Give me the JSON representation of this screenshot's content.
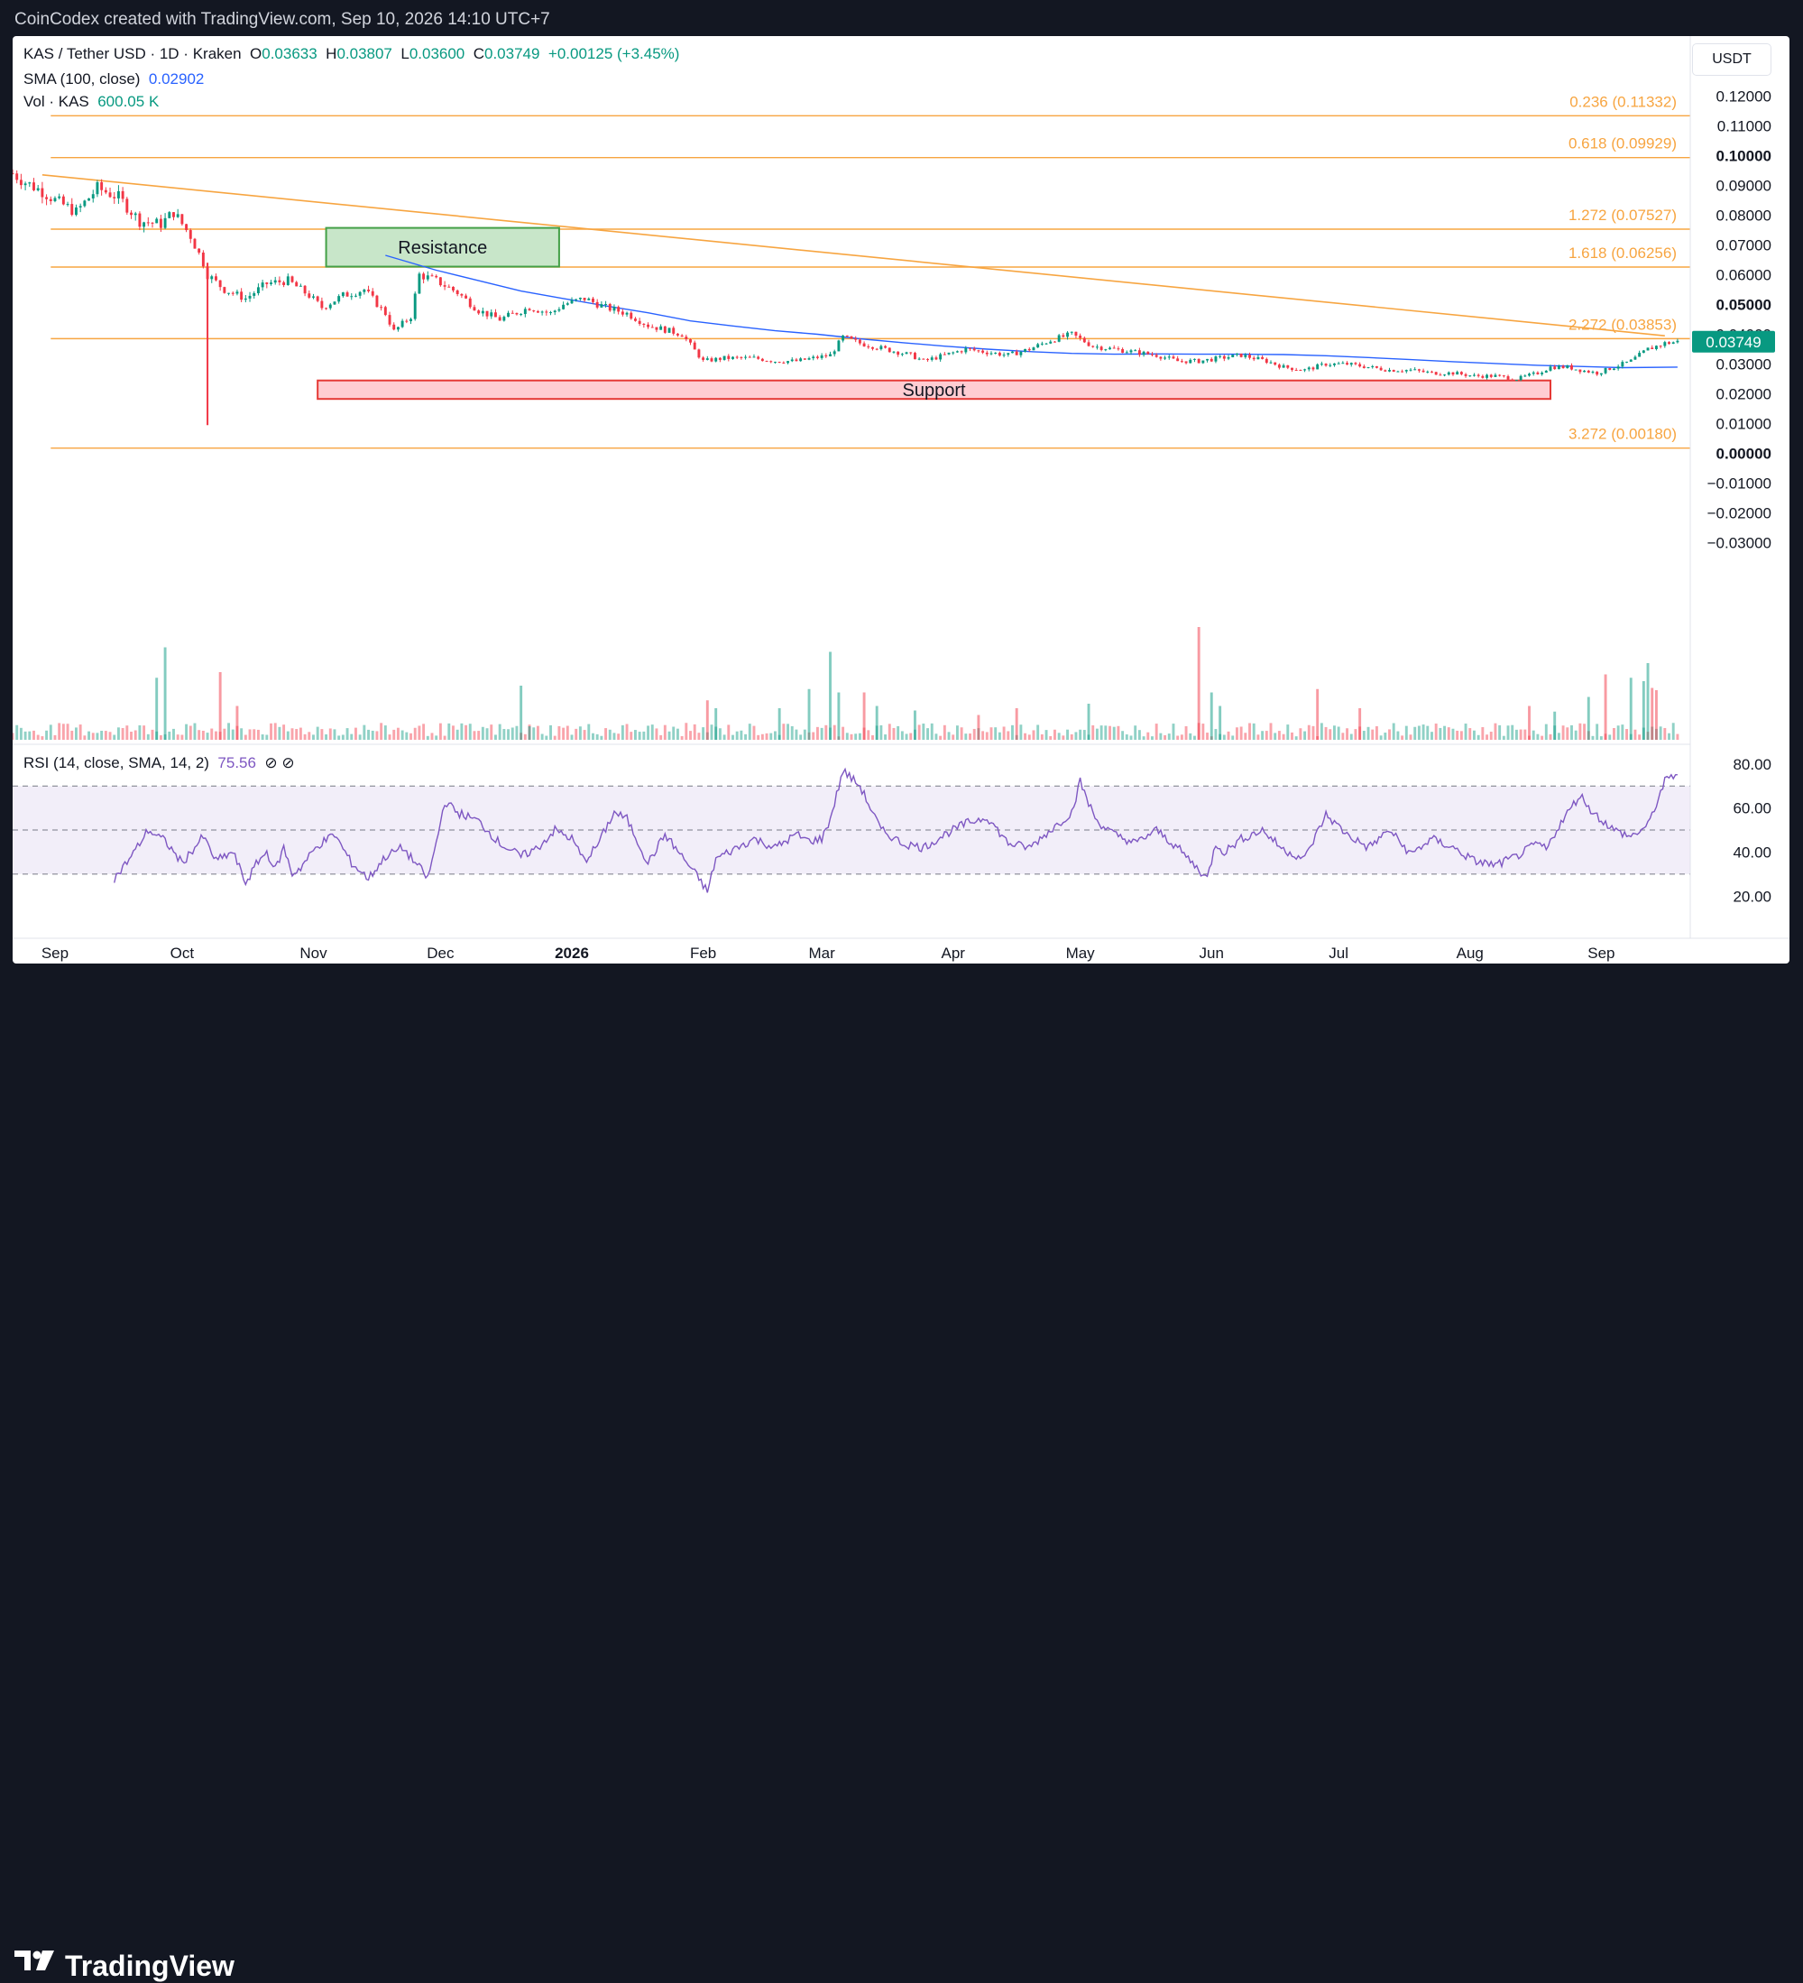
{
  "header": {
    "text": "CoinCodex created with TradingView.com, Sep 10, 2026 14:10 UTC+7"
  },
  "footer": {
    "brand": "TradingView"
  },
  "legend": {
    "symbol": "KAS / Tether USD · 1D · Kraken",
    "o_label": "O",
    "o": "0.03633",
    "h_label": "H",
    "h": "0.03807",
    "l_label": "L",
    "l": "0.03600",
    "c_label": "C",
    "c": "0.03749",
    "change": "+0.00125 (+3.45%)",
    "sma_label": "SMA (100, close)",
    "sma_value": "0.02902",
    "vol_label": "Vol · KAS",
    "vol_value": "600.05 K",
    "rsi_label": "RSI (14, close, SMA, 14, 2)",
    "rsi_value": "75.56",
    "rsi_icons": "⊘ ⊘"
  },
  "currency_button": "USDT",
  "chart_data": {
    "type": "candlestick",
    "title": "KAS / Tether USD · 1D · Kraken",
    "price_axis": {
      "labels": [
        "0.12000",
        "0.11000",
        "0.10000",
        "0.09000",
        "0.08000",
        "0.07000",
        "0.06000",
        "0.05000",
        "0.04000",
        "0.03000",
        "0.02000",
        "0.01000",
        "0.00000",
        "−0.01000",
        "−0.02000",
        "−0.03000"
      ],
      "values": [
        0.12,
        0.11,
        0.1,
        0.09,
        0.08,
        0.07,
        0.06,
        0.05,
        0.04,
        0.03,
        0.02,
        0.01,
        0.0,
        -0.01,
        -0.02,
        -0.03
      ],
      "bold": [
        "0.10000",
        "0.05000",
        "0.00000"
      ],
      "ylim": [
        -0.0325,
        0.1225
      ]
    },
    "time_axis": {
      "labels": [
        "Sep",
        "Oct",
        "Nov",
        "Dec",
        "2026",
        "Feb",
        "Mar",
        "Apr",
        "May",
        "Jun",
        "Jul",
        "Aug",
        "Sep"
      ],
      "day_index": [
        0,
        30,
        61,
        91,
        122,
        153,
        181,
        212,
        242,
        273,
        303,
        334,
        365
      ],
      "bold": [
        "2026"
      ],
      "xlim": [
        -10,
        386
      ]
    },
    "fib_levels": [
      {
        "label": "0.236 (0.11332)",
        "value": 0.11332
      },
      {
        "label": "0.618 (0.09929)",
        "value": 0.09929
      },
      {
        "label": "1.272 (0.07527)",
        "value": 0.07527
      },
      {
        "label": "1.618 (0.06256)",
        "value": 0.06256
      },
      {
        "label": "2.272 (0.03853)",
        "value": 0.03853
      },
      {
        "label": "3.272 (0.00180)",
        "value": 0.0018
      }
    ],
    "trendline": {
      "x": [
        -3,
        380
      ],
      "y": [
        0.0935,
        0.0395
      ]
    },
    "zones": [
      {
        "label": "Resistance",
        "x": [
          64,
          119
        ],
        "y": [
          0.0627,
          0.0757
        ],
        "kind": "resistance"
      },
      {
        "label": "Support",
        "x": [
          62,
          353
        ],
        "y": [
          0.0183,
          0.0245
        ],
        "kind": "support"
      }
    ],
    "last_price": {
      "label": "0.03749",
      "value": 0.03749
    },
    "close_series": {
      "x": [
        -10,
        -7,
        -3,
        0,
        5,
        10,
        15,
        20,
        25,
        28,
        32,
        35,
        36,
        40,
        45,
        50,
        55,
        60,
        63,
        68,
        73,
        78,
        80,
        84,
        86,
        90,
        95,
        100,
        105,
        112,
        117,
        120,
        125,
        130,
        135,
        140,
        148,
        153,
        158,
        165,
        170,
        175,
        179,
        183,
        186,
        190,
        196,
        202,
        205,
        210,
        215,
        220,
        225,
        230,
        235,
        240,
        245,
        250,
        255,
        260,
        265,
        270,
        275,
        280,
        286,
        290,
        295,
        300,
        305,
        310,
        315,
        320,
        325,
        330,
        335,
        340,
        345,
        350,
        353,
        357,
        360,
        364,
        368,
        372,
        376,
        380,
        383
      ],
      "y": [
        0.094,
        0.091,
        0.088,
        0.085,
        0.081,
        0.089,
        0.086,
        0.078,
        0.077,
        0.081,
        0.073,
        0.064,
        0.06,
        0.055,
        0.052,
        0.057,
        0.058,
        0.053,
        0.049,
        0.053,
        0.055,
        0.047,
        0.041,
        0.046,
        0.06,
        0.058,
        0.054,
        0.048,
        0.045,
        0.049,
        0.047,
        0.05,
        0.052,
        0.049,
        0.047,
        0.043,
        0.04,
        0.031,
        0.032,
        0.032,
        0.031,
        0.031,
        0.032,
        0.033,
        0.039,
        0.037,
        0.035,
        0.033,
        0.031,
        0.033,
        0.035,
        0.034,
        0.033,
        0.035,
        0.038,
        0.04,
        0.036,
        0.035,
        0.034,
        0.033,
        0.031,
        0.031,
        0.032,
        0.033,
        0.031,
        0.029,
        0.028,
        0.03,
        0.03,
        0.029,
        0.028,
        0.028,
        0.027,
        0.027,
        0.026,
        0.026,
        0.025,
        0.027,
        0.029,
        0.029,
        0.028,
        0.027,
        0.029,
        0.031,
        0.035,
        0.037,
        0.0375
      ]
    },
    "sma_series": {
      "x": [
        78,
        90,
        100,
        110,
        120,
        130,
        140,
        150,
        160,
        170,
        180,
        190,
        200,
        210,
        220,
        230,
        240,
        250,
        260,
        270,
        280,
        290,
        300,
        310,
        320,
        330,
        340,
        350,
        360,
        370,
        383
      ],
      "y": [
        0.0665,
        0.0615,
        0.058,
        0.0545,
        0.052,
        0.0495,
        0.0472,
        0.0445,
        0.0428,
        0.0412,
        0.04,
        0.0385,
        0.0372,
        0.036,
        0.035,
        0.0342,
        0.0336,
        0.0333,
        0.0334,
        0.0333,
        0.0333,
        0.0332,
        0.0328,
        0.0322,
        0.0315,
        0.0308,
        0.0302,
        0.0296,
        0.0292,
        0.0288,
        0.029
      ]
    },
    "volume_spikes": {
      "x": [
        24,
        26,
        39,
        43,
        110,
        112,
        154,
        156,
        171,
        178,
        183,
        185,
        191,
        194,
        203,
        218,
        227,
        244,
        270,
        273,
        275,
        298,
        308,
        348,
        354,
        362,
        366,
        372,
        375,
        376,
        377,
        378
      ],
      "v": [
        0.55,
        0.82,
        0.6,
        0.3,
        0.48,
        0.12,
        0.35,
        0.28,
        0.28,
        0.45,
        0.78,
        0.42,
        0.42,
        0.3,
        0.26,
        0.22,
        0.28,
        0.32,
        1.0,
        0.42,
        0.3,
        0.45,
        0.28,
        0.3,
        0.25,
        0.38,
        0.58,
        0.55,
        0.52,
        0.68,
        0.46,
        0.44
      ],
      "up": [
        true,
        true,
        false,
        false,
        true,
        true,
        false,
        true,
        true,
        true,
        true,
        true,
        false,
        true,
        true,
        false,
        false,
        true,
        false,
        true,
        true,
        false,
        false,
        false,
        true,
        true,
        false,
        true,
        true,
        true,
        false,
        false
      ]
    },
    "rsi_axis": {
      "labels": [
        "80.00",
        "60.00",
        "40.00",
        "20.00"
      ],
      "values": [
        80,
        60,
        40,
        20
      ],
      "band": [
        30,
        70
      ],
      "mid": 50,
      "ylim": [
        14,
        84
      ]
    },
    "rsi_series": {
      "x": [
        14,
        18,
        22,
        26,
        30,
        35,
        38,
        42,
        45,
        48,
        50,
        52,
        54,
        56,
        58,
        62,
        66,
        70,
        74,
        78,
        82,
        86,
        88,
        90,
        92,
        95,
        100,
        105,
        110,
        114,
        118,
        122,
        125,
        128,
        132,
        135,
        138,
        140,
        144,
        148,
        152,
        154,
        156,
        160,
        165,
        170,
        175,
        178,
        181,
        183,
        186,
        190,
        195,
        200,
        205,
        210,
        215,
        220,
        225,
        230,
        235,
        240,
        242,
        244,
        246,
        250,
        255,
        260,
        265,
        270,
        272,
        274,
        276,
        280,
        285,
        290,
        295,
        300,
        305,
        310,
        315,
        320,
        325,
        330,
        335,
        340,
        345,
        350,
        352,
        355,
        360,
        363,
        368,
        372,
        376,
        380,
        383
      ],
      "y": [
        28,
        38,
        50,
        45,
        35,
        47,
        36,
        40,
        26,
        36,
        40,
        32,
        42,
        30,
        33,
        43,
        48,
        35,
        28,
        38,
        42,
        33,
        28,
        44,
        63,
        58,
        54,
        44,
        38,
        42,
        50,
        46,
        36,
        43,
        58,
        55,
        43,
        35,
        48,
        38,
        28,
        22,
        37,
        41,
        46,
        42,
        48,
        45,
        46,
        55,
        77,
        70,
        50,
        44,
        42,
        48,
        53,
        56,
        44,
        42,
        50,
        58,
        72,
        62,
        54,
        48,
        44,
        50,
        42,
        32,
        28,
        44,
        40,
        46,
        50,
        41,
        37,
        57,
        48,
        42,
        50,
        39,
        46,
        42,
        36,
        34,
        38,
        44,
        41,
        52,
        66,
        58,
        50,
        47,
        52,
        72,
        76
      ]
    }
  }
}
